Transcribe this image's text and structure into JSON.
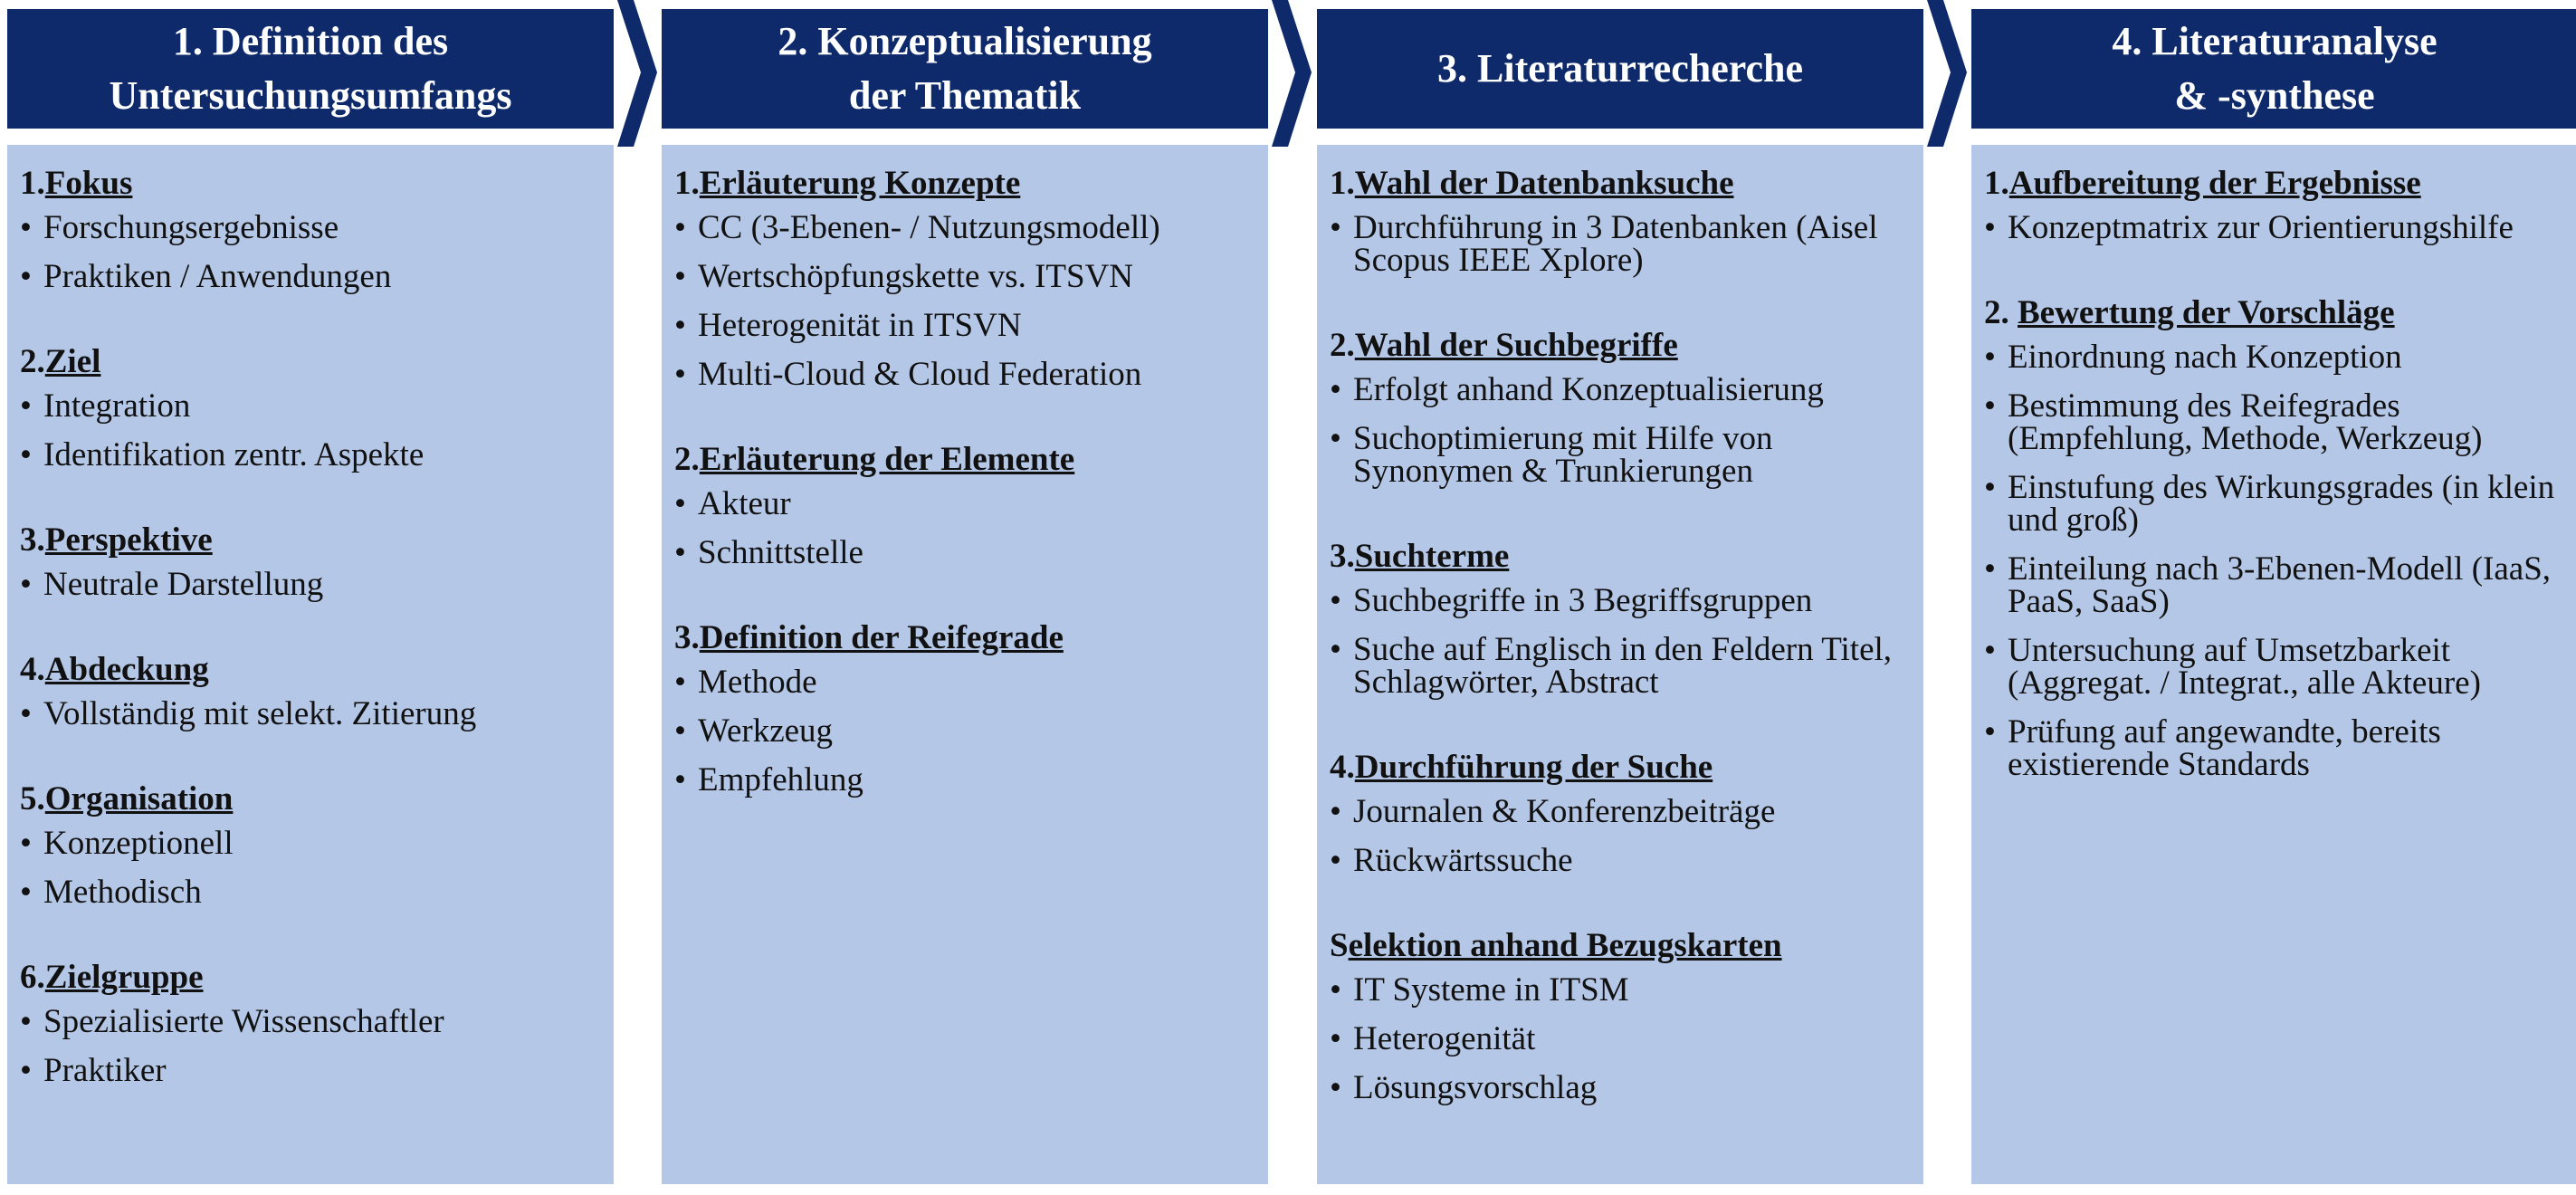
{
  "columns": [
    {
      "title": "1. Definition des\nUntersuchungsumfangs",
      "sections": [
        {
          "num": "1.",
          "title": "Fokus",
          "items": [
            "Forschungsergebnisse",
            "Praktiken / Anwendungen"
          ]
        },
        {
          "num": "2.",
          "title": "Ziel",
          "items": [
            "Integration",
            "Identifikation zentr. Aspekte"
          ]
        },
        {
          "num": "3.",
          "title": "Perspektive",
          "items": [
            "Neutrale Darstellung"
          ]
        },
        {
          "num": "4.",
          "title": "Abdeckung",
          "items": [
            "Vollständig mit selekt. Zitierung"
          ]
        },
        {
          "num": "5.",
          "title": "Organisation",
          "items": [
            "Konzeptionell",
            "Methodisch"
          ]
        },
        {
          "num": "6.",
          "title": "Zielgruppe",
          "items": [
            "Spezialisierte Wissenschaftler",
            "Praktiker"
          ]
        }
      ]
    },
    {
      "title": "2. Konzeptualisierung\nder Thematik",
      "sections": [
        {
          "num": "1.",
          "title": "Erläuterung Konzepte",
          "items": [
            "CC (3-Ebenen- / Nutzungsmodell)",
            "Wertschöpfungskette vs. ITSVN",
            "Heterogenität in ITSVN",
            "Multi-Cloud & Cloud Federation"
          ]
        },
        {
          "num": "2.",
          "title": "Erläuterung der Elemente",
          "items": [
            "Akteur",
            "Schnittstelle"
          ]
        },
        {
          "num": "3.",
          "title": "Definition der Reifegrade",
          "items": [
            "Methode",
            "Werkzeug",
            "Empfehlung"
          ]
        }
      ]
    },
    {
      "title": "3. Literaturrecherche",
      "sections": [
        {
          "num": "1.",
          "title": "Wahl der Datenbanksuche",
          "items": [
            "Durchführung in 3 Datenbanken (Aisel Scopus IEEE Xplore)"
          ]
        },
        {
          "num": "2.",
          "title": "Wahl der Suchbegriffe",
          "items": [
            "Erfolgt anhand Konzeptualisierung",
            "Suchoptimierung mit Hilfe von Synonymen & Trunkierungen"
          ]
        },
        {
          "num": "3.",
          "title": "Suchterme",
          "items": [
            "Suchbegriffe in 3 Begriffsgruppen",
            "Suche auf Englisch in den Feldern Titel, Schlagwörter, Abstract"
          ]
        },
        {
          "num": "4.",
          "title": "Durchführung der Suche",
          "items": [
            "Journalen & Konferenzbeiträge",
            "Rückwärtssuche"
          ]
        },
        {
          "num": "S",
          "title": "elektion anhand Bezugskarten",
          "items": [
            "IT Systeme in ITSM",
            "Heterogenität",
            "Lösungsvorschlag"
          ]
        }
      ]
    },
    {
      "title": "4. Literaturanalyse\n& -synthese",
      "sections": [
        {
          "num": "1.",
          "title": "Aufbereitung der Ergebnisse",
          "items": [
            "Konzeptmatrix zur Orientierungshilfe"
          ]
        },
        {
          "num": "2. ",
          "title": "Bewertung der Vorschläge",
          "items": [
            "Einordnung nach Konzeption",
            "Bestimmung des Reifegrades (Empfehlung, Methode, Werkzeug)",
            "Einstufung des Wirkungsgrades (in klein und groß)",
            "Einteilung nach 3-Ebenen-Modell (IaaS, PaaS, SaaS)",
            "Untersuchung auf Umsetzbarkeit (Aggregat. / Integrat., alle Akteure)",
            "Prüfung auf angewandte, bereits existierende Standards"
          ]
        }
      ]
    }
  ],
  "colors": {
    "header": "#0e2a6b",
    "body": "#b4c7e7",
    "text": "#111111",
    "arrow": "#0e2a6b"
  }
}
